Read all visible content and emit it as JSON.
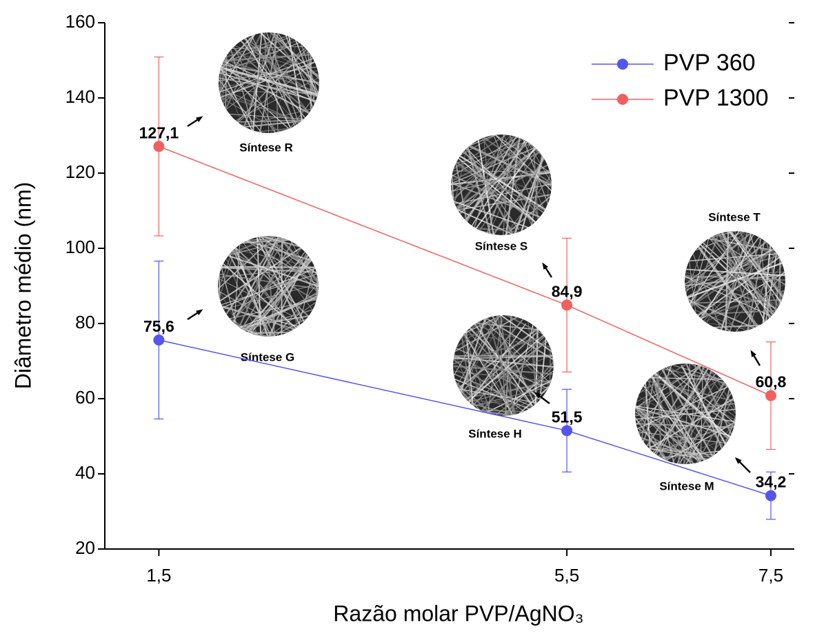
{
  "chart_data": {
    "type": "line",
    "x_label": "Razão molar PVP/AgNO₃",
    "y_label": "Diâmetro médio (nm)",
    "x": [
      1.5,
      5.5,
      7.5
    ],
    "series": [
      {
        "name": "PVP 360",
        "color": "#5555ee",
        "values": [
          75.6,
          51.5,
          34.2
        ],
        "errors": [
          21,
          11,
          6.3
        ],
        "value_labels": [
          "75,6",
          "51,5",
          "34,2"
        ]
      },
      {
        "name": "PVP 1300",
        "color": "#f06060",
        "values": [
          127.1,
          84.9,
          60.8
        ],
        "errors": [
          23.8,
          17.8,
          14.3
        ],
        "value_labels": [
          "127,1",
          "84,9",
          "60,8"
        ]
      }
    ],
    "xlim": [
      0.97,
      7.73
    ],
    "ylim": [
      20,
      160
    ],
    "xticks": [
      {
        "value": 1.5,
        "label": "1,5"
      },
      {
        "value": 5.5,
        "label": "5,5"
      },
      {
        "value": 7.5,
        "label": "7,5"
      }
    ],
    "yticks": [
      20,
      40,
      60,
      80,
      100,
      120,
      140,
      160
    ],
    "legend": "upper right",
    "annotations": [
      "Síntese R",
      "Síntese G",
      "Síntese S",
      "Síntese H",
      "Síntese T",
      "Síntese M"
    ]
  }
}
